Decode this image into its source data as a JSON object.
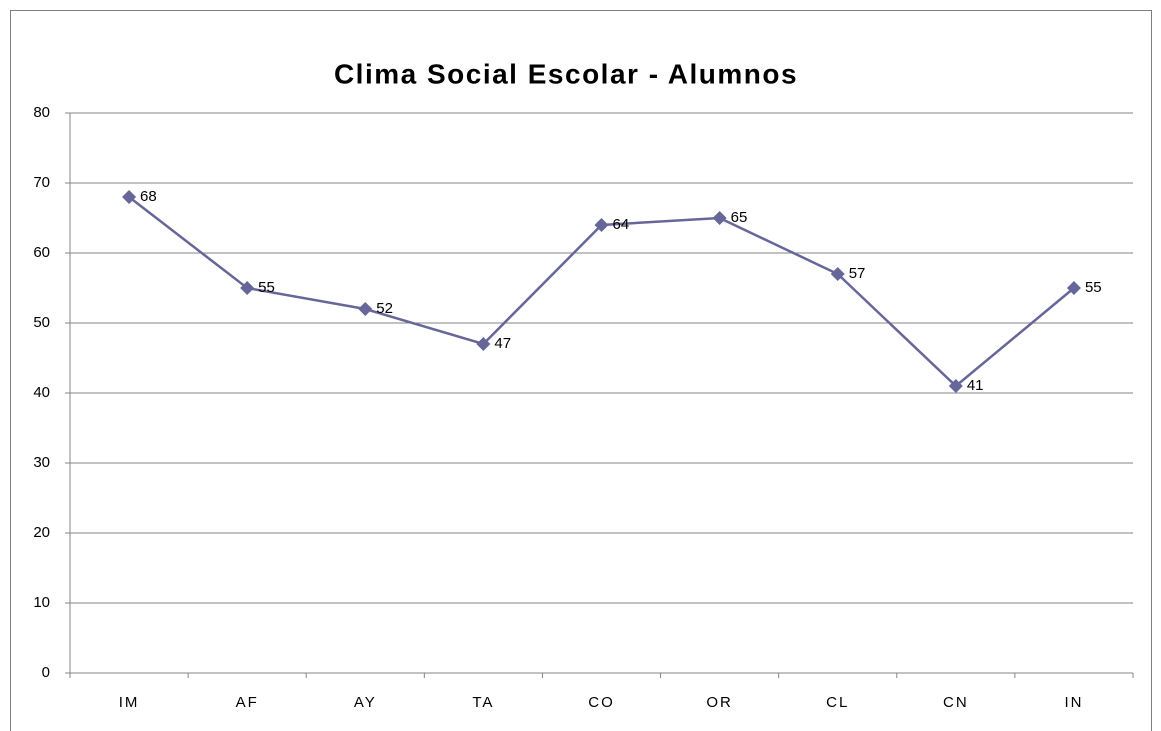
{
  "chart_data": {
    "type": "line",
    "title": "Clima Social Escolar - Alumnos",
    "categories": [
      "IM",
      "AF",
      "AY",
      "TA",
      "CO",
      "OR",
      "CL",
      "CN",
      "IN"
    ],
    "series": [
      {
        "name": "Alumnos",
        "color": "#666699",
        "values": [
          68,
          55,
          52,
          47,
          64,
          65,
          57,
          41,
          55
        ]
      }
    ],
    "ylim": [
      0,
      80
    ],
    "yticks": [
      0,
      10,
      20,
      30,
      40,
      50,
      60,
      70,
      80
    ],
    "grid": true
  }
}
